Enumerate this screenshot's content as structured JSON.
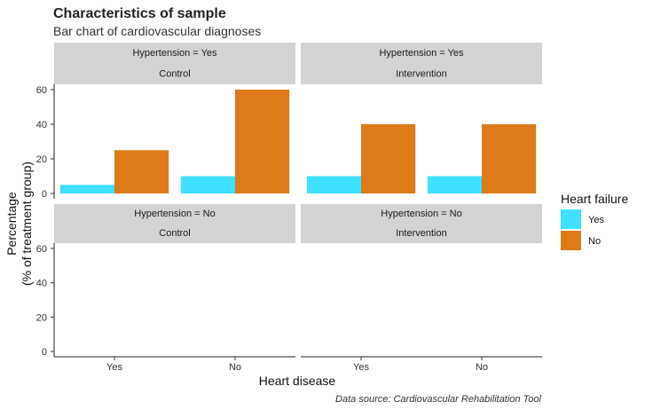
{
  "title": "Characteristics of sample",
  "subtitle": "Bar chart of cardiovascular diagnoses",
  "caption": "Data source: Cardiovascular Rehabilitation Tool",
  "chart_data": {
    "type": "bar",
    "title": "Characteristics of sample",
    "subtitle": "Bar chart of cardiovascular diagnoses",
    "xlabel": "Heart disease",
    "ylabel_line1": "Percentage",
    "ylabel_line2": "(%  of treatment group)",
    "categories": [
      "Yes",
      "No"
    ],
    "ylim": [
      0,
      60
    ],
    "yticks": [
      0,
      20,
      40,
      60
    ],
    "ytick_labels": [
      "0",
      "20",
      "40",
      "60"
    ],
    "grid": false,
    "legend": {
      "title": "Heart failure",
      "position": "right",
      "entries": [
        {
          "label": "Yes",
          "color": "#40E0FF"
        },
        {
          "label": "No",
          "color": "#DC7A1C"
        }
      ]
    },
    "strip_fill": "#D3D3D3",
    "panels": [
      {
        "row_label": "Hypertension = Yes",
        "col_label": "Control",
        "series": [
          {
            "name": "Yes",
            "values": [
              5,
              10
            ]
          },
          {
            "name": "No",
            "values": [
              25,
              60
            ]
          }
        ]
      },
      {
        "row_label": "Hypertension = Yes",
        "col_label": "Intervention",
        "series": [
          {
            "name": "Yes",
            "values": [
              10,
              10
            ]
          },
          {
            "name": "No",
            "values": [
              40,
              40
            ]
          }
        ]
      },
      {
        "row_label": "Hypertension = No",
        "col_label": "Control",
        "series": [
          {
            "name": "Yes",
            "values": [
              0,
              0
            ]
          },
          {
            "name": "No",
            "values": [
              0,
              0
            ]
          }
        ]
      },
      {
        "row_label": "Hypertension = No",
        "col_label": "Intervention",
        "series": [
          {
            "name": "Yes",
            "values": [
              0,
              0
            ]
          },
          {
            "name": "No",
            "values": [
              0,
              0
            ]
          }
        ]
      }
    ]
  }
}
